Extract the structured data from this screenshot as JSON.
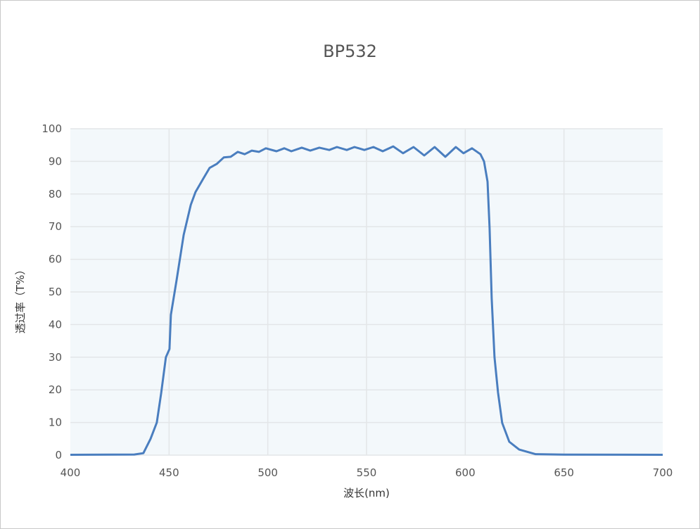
{
  "chart_data": {
    "type": "line",
    "title": "BP532",
    "xlabel": "波长(nm)",
    "ylabel": "透过率（T%）",
    "xlim": [
      400,
      700
    ],
    "ylim": [
      0,
      100
    ],
    "xticks": [
      400,
      450,
      500,
      550,
      600,
      650,
      700
    ],
    "yticks": [
      0,
      10,
      20,
      30,
      40,
      50,
      60,
      70,
      80,
      90,
      100
    ],
    "grid": true,
    "colors": {
      "line": "#4a7ebf",
      "plot_bg": "#f3f8fb",
      "grid": "#e3e6e8"
    },
    "series": [
      {
        "x": [
          400,
          432.4,
          437,
          440.6,
          443.8,
          446,
          448.4,
          450.2,
          450.9,
          453.8,
          457.4,
          461,
          463.4,
          467.3,
          470.5,
          474.1,
          477.7,
          481.2,
          484.8,
          488.3,
          491.9,
          495.5,
          499,
          504.4,
          508.3,
          511.9,
          517.2,
          521.5,
          526.1,
          531.1,
          535,
          540,
          543.9,
          548.9,
          553.5,
          558.2,
          563.5,
          568.5,
          573.8,
          579.2,
          584.5,
          589.9,
          595.2,
          599.1,
          603.4,
          607.7,
          609.5,
          611.3,
          612.3,
          613.4,
          614.8,
          616.6,
          618.7,
          622.3,
          627.3,
          635.5,
          650,
          700
        ],
        "y": [
          0.1,
          0.2,
          0.6,
          5,
          10,
          19,
          30,
          32.5,
          43,
          53.6,
          67.5,
          76.7,
          80.6,
          84.7,
          88,
          89.2,
          91.2,
          91.4,
          92.9,
          92.2,
          93.3,
          92.9,
          94,
          93.1,
          94,
          93.1,
          94.2,
          93.3,
          94.2,
          93.5,
          94.4,
          93.5,
          94.4,
          93.5,
          94.4,
          93.1,
          94.6,
          92.5,
          94.4,
          91.8,
          94.4,
          91.4,
          94.4,
          92.5,
          94,
          92.2,
          90,
          83.8,
          69.6,
          48,
          30,
          19.2,
          9.9,
          4.1,
          1.7,
          0.3,
          0.15,
          0.1
        ]
      }
    ]
  }
}
